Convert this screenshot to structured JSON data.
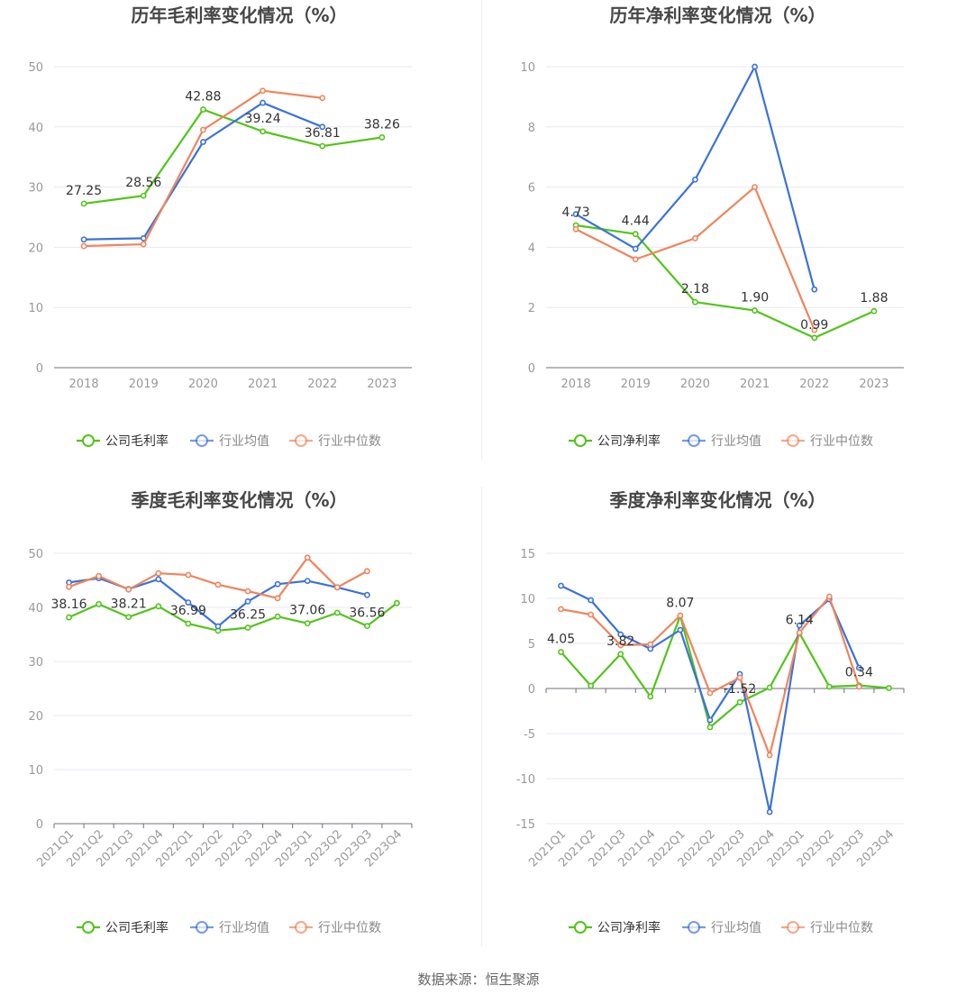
{
  "footer": {
    "source": "数据来源：恒生聚源"
  },
  "colors": {
    "company": "#52c41a",
    "avg": "#3b72d9",
    "median": "#f0845c",
    "grid": "#e6e9f0",
    "axis": "#6e7079",
    "tick": "#999999",
    "title": "#464646",
    "label": "#333333"
  },
  "chart_data": [
    {
      "type": "line",
      "title": "历年毛利率变化情况（%）",
      "categories": [
        "2018",
        "2019",
        "2020",
        "2021",
        "2022",
        "2023"
      ],
      "ylim": [
        0,
        50
      ],
      "yticks": [
        0,
        10,
        20,
        30,
        40,
        50
      ],
      "series": [
        {
          "name": "公司毛利率",
          "values": [
            27.25,
            28.56,
            42.88,
            39.24,
            36.81,
            38.26
          ],
          "labels": [
            "27.25",
            "28.56",
            "42.88",
            "39.24",
            "36.81",
            "38.26"
          ]
        },
        {
          "name": "行业均值",
          "values": [
            21.3,
            21.5,
            37.5,
            44.0,
            40.0,
            null
          ]
        },
        {
          "name": "行业中位数",
          "values": [
            20.2,
            20.5,
            39.5,
            46.0,
            44.8,
            null
          ]
        }
      ]
    },
    {
      "type": "line",
      "title": "历年净利率变化情况（%）",
      "categories": [
        "2018",
        "2019",
        "2020",
        "2021",
        "2022",
        "2023"
      ],
      "ylim": [
        0,
        10
      ],
      "yticks": [
        0,
        2,
        4,
        6,
        8,
        10
      ],
      "series": [
        {
          "name": "公司净利率",
          "values": [
            4.73,
            4.44,
            2.18,
            1.9,
            0.99,
            1.88
          ],
          "labels": [
            "4.73",
            "4.44",
            "2.18",
            "1.90",
            "0.99",
            "1.88"
          ]
        },
        {
          "name": "行业均值",
          "values": [
            5.1,
            3.95,
            6.25,
            10.0,
            2.6,
            null
          ]
        },
        {
          "name": "行业中位数",
          "values": [
            4.6,
            3.6,
            4.3,
            6.0,
            1.25,
            null
          ]
        }
      ]
    },
    {
      "type": "line",
      "title": "季度毛利率变化情况（%）",
      "categories": [
        "2021Q1",
        "2021Q2",
        "2021Q3",
        "2021Q4",
        "2022Q1",
        "2022Q2",
        "2022Q3",
        "2022Q4",
        "2023Q1",
        "2023Q2",
        "2023Q3",
        "2023Q4"
      ],
      "ylim": [
        0,
        50
      ],
      "yticks": [
        0,
        10,
        20,
        30,
        40,
        50
      ],
      "series": [
        {
          "name": "公司毛利率",
          "values": [
            38.16,
            40.6,
            38.21,
            40.2,
            36.99,
            35.7,
            36.25,
            38.3,
            37.06,
            39.0,
            36.56,
            40.8
          ],
          "labels": [
            "38.16",
            "",
            "38.21",
            "",
            "36.99",
            "",
            "36.25",
            "",
            "37.06",
            "",
            "36.56",
            ""
          ]
        },
        {
          "name": "行业均值",
          "values": [
            44.6,
            45.4,
            43.4,
            45.2,
            40.9,
            36.5,
            41.1,
            44.3,
            44.9,
            43.7,
            42.3,
            null
          ]
        },
        {
          "name": "行业中位数",
          "values": [
            43.8,
            45.8,
            43.3,
            46.3,
            46.0,
            44.2,
            43.0,
            41.7,
            49.2,
            43.7,
            46.7,
            null
          ]
        }
      ]
    },
    {
      "type": "line",
      "title": "季度净利率变化情况（%）",
      "categories": [
        "2021Q1",
        "2021Q2",
        "2021Q3",
        "2021Q4",
        "2022Q1",
        "2022Q2",
        "2022Q3",
        "2022Q4",
        "2023Q1",
        "2023Q2",
        "2023Q3",
        "2023Q4"
      ],
      "ylim": [
        -15,
        15
      ],
      "yticks": [
        -15,
        -10,
        -5,
        0,
        5,
        10,
        15
      ],
      "series": [
        {
          "name": "公司净利率",
          "values": [
            4.05,
            0.3,
            3.82,
            -0.9,
            8.07,
            -4.3,
            -1.52,
            0.1,
            6.14,
            0.2,
            0.34,
            0.05
          ],
          "labels": [
            "4.05",
            "",
            "3.82",
            "",
            "8.07",
            "",
            "-1.52",
            "",
            "6.14",
            "",
            "0.34",
            ""
          ]
        },
        {
          "name": "行业均值",
          "values": [
            11.4,
            9.8,
            6.0,
            4.4,
            6.5,
            -3.5,
            1.6,
            -13.7,
            7.0,
            9.9,
            2.3,
            null
          ]
        },
        {
          "name": "行业中位数",
          "values": [
            8.8,
            8.2,
            4.8,
            4.9,
            8.1,
            -0.5,
            1.2,
            -7.4,
            6.2,
            10.2,
            0.2,
            null
          ]
        }
      ]
    }
  ]
}
